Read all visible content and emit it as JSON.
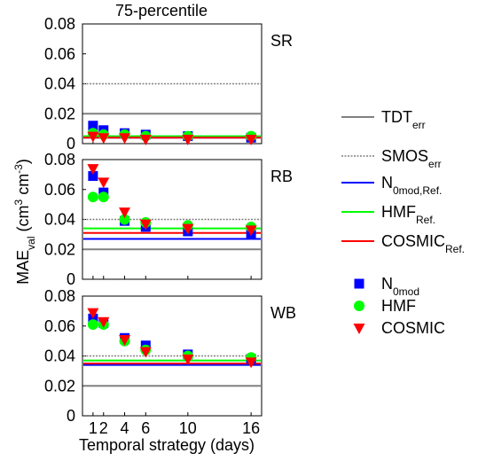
{
  "figure": {
    "title": "75-percentile",
    "xlabel": "Temporal strategy (days)",
    "ylabel": [
      {
        "text": "MAE"
      },
      {
        "text": "val",
        "shift": "sub"
      },
      {
        "text": " (cm"
      },
      {
        "text": "3",
        "shift": "super"
      },
      {
        "text": " cm"
      },
      {
        "text": "-3",
        "shift": "super"
      },
      {
        "text": ")"
      }
    ],
    "legend": [
      {
        "kind": "line",
        "color": "#808080",
        "parts": [
          {
            "text": "TDT"
          },
          {
            "text": "err",
            "shift": "sub"
          }
        ]
      },
      {
        "kind": "dotted",
        "color": "#808080",
        "parts": [
          {
            "text": "SMOS"
          },
          {
            "text": "err",
            "shift": "sub"
          }
        ]
      },
      {
        "kind": "line",
        "color": "#0000ff",
        "parts": [
          {
            "text": "N"
          },
          {
            "text": "0mod,Ref.",
            "shift": "sub"
          }
        ]
      },
      {
        "kind": "line",
        "color": "#00ff00",
        "parts": [
          {
            "text": "HMF"
          },
          {
            "text": "Ref.",
            "shift": "sub"
          }
        ]
      },
      {
        "kind": "line",
        "color": "#ff0000",
        "parts": [
          {
            "text": "COSMIC"
          },
          {
            "text": "Ref.",
            "shift": "sub"
          }
        ]
      },
      {
        "kind": "square",
        "color": "#0000ff",
        "parts": [
          {
            "text": "N"
          },
          {
            "text": "0mod",
            "shift": "sub"
          }
        ]
      },
      {
        "kind": "circle",
        "color": "#00ff00",
        "parts": [
          {
            "text": "HMF"
          }
        ]
      },
      {
        "kind": "triangle",
        "color": "#ff0000",
        "parts": [
          {
            "text": "COSMIC"
          }
        ]
      }
    ]
  },
  "chart_data": [
    {
      "type": "scatter",
      "label": "SR",
      "x": [
        1,
        2,
        4,
        6,
        10,
        16
      ],
      "xlim": [
        0,
        17
      ],
      "xticks": [
        1,
        2,
        4,
        6,
        10,
        16
      ],
      "ylim": [
        0,
        0.08
      ],
      "yticks": [
        0,
        0.02,
        0.04,
        0.06,
        0.08
      ],
      "lines": [
        {
          "color": "#808080",
          "dotted": false,
          "value": 0.02
        },
        {
          "color": "#808080",
          "dotted": true,
          "value": 0.04
        },
        {
          "color": "#0000ff",
          "dotted": false,
          "value": 0.004
        },
        {
          "color": "#00ff00",
          "dotted": false,
          "value": 0.005
        },
        {
          "color": "#ff0000",
          "dotted": false,
          "value": 0.004
        }
      ],
      "series": [
        {
          "marker": "square",
          "color": "#0000ff",
          "values": [
            0.012,
            0.009,
            0.007,
            0.006,
            0.005,
            0.004
          ]
        },
        {
          "marker": "circle",
          "color": "#00ff00",
          "values": [
            0.007,
            0.006,
            0.006,
            0.005,
            0.005,
            0.005
          ]
        },
        {
          "marker": "triangle",
          "color": "#ff0000",
          "values": [
            0.005,
            0.004,
            0.004,
            0.003,
            0.003,
            0.003
          ]
        }
      ]
    },
    {
      "type": "scatter",
      "label": "RB",
      "x": [
        1,
        2,
        4,
        6,
        10,
        16
      ],
      "xlim": [
        0,
        17
      ],
      "xticks": [
        1,
        2,
        4,
        6,
        10,
        16
      ],
      "ylim": [
        0,
        0.08
      ],
      "yticks": [
        0,
        0.02,
        0.04,
        0.06,
        0.08
      ],
      "lines": [
        {
          "color": "#808080",
          "dotted": false,
          "value": 0.02
        },
        {
          "color": "#808080",
          "dotted": true,
          "value": 0.04
        },
        {
          "color": "#0000ff",
          "dotted": false,
          "value": 0.027
        },
        {
          "color": "#00ff00",
          "dotted": false,
          "value": 0.034
        },
        {
          "color": "#ff0000",
          "dotted": false,
          "value": 0.031
        }
      ],
      "series": [
        {
          "marker": "square",
          "color": "#0000ff",
          "values": [
            0.069,
            0.058,
            0.039,
            0.035,
            0.032,
            0.03
          ]
        },
        {
          "marker": "circle",
          "color": "#00ff00",
          "values": [
            0.055,
            0.055,
            0.04,
            0.038,
            0.036,
            0.035
          ]
        },
        {
          "marker": "triangle",
          "color": "#ff0000",
          "values": [
            0.074,
            0.065,
            0.045,
            0.037,
            0.034,
            0.033
          ]
        }
      ]
    },
    {
      "type": "scatter",
      "label": "WB",
      "x": [
        1,
        2,
        4,
        6,
        10,
        16
      ],
      "xlim": [
        0,
        17
      ],
      "xticks": [
        1,
        2,
        4,
        6,
        10,
        16
      ],
      "ylim": [
        0,
        0.08
      ],
      "yticks": [
        0,
        0.02,
        0.04,
        0.06,
        0.08
      ],
      "lines": [
        {
          "color": "#808080",
          "dotted": false,
          "value": 0.02
        },
        {
          "color": "#808080",
          "dotted": true,
          "value": 0.04
        },
        {
          "color": "#0000ff",
          "dotted": false,
          "value": 0.034
        },
        {
          "color": "#00ff00",
          "dotted": false,
          "value": 0.037
        },
        {
          "color": "#ff0000",
          "dotted": false,
          "value": 0.035
        }
      ],
      "series": [
        {
          "marker": "square",
          "color": "#0000ff",
          "values": [
            0.065,
            0.062,
            0.052,
            0.047,
            0.041,
            0.038
          ]
        },
        {
          "marker": "circle",
          "color": "#00ff00",
          "values": [
            0.061,
            0.061,
            0.05,
            0.044,
            0.04,
            0.039
          ]
        },
        {
          "marker": "triangle",
          "color": "#ff0000",
          "values": [
            0.069,
            0.063,
            0.051,
            0.043,
            0.038,
            0.036
          ]
        }
      ]
    }
  ]
}
